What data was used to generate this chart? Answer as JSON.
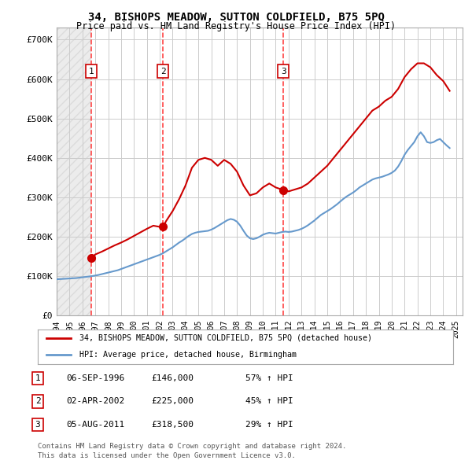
{
  "title": "34, BISHOPS MEADOW, SUTTON COLDFIELD, B75 5PQ",
  "subtitle": "Price paid vs. HM Land Registry's House Price Index (HPI)",
  "xlim": [
    1994,
    2025.5
  ],
  "ylim": [
    0,
    730000
  ],
  "yticks": [
    0,
    100000,
    200000,
    300000,
    400000,
    500000,
    600000,
    700000
  ],
  "ytick_labels": [
    "£0",
    "£100K",
    "£200K",
    "£300K",
    "£400K",
    "£500K",
    "£600K",
    "£700K"
  ],
  "xticks": [
    1994,
    1995,
    1996,
    1997,
    1998,
    1999,
    2000,
    2001,
    2002,
    2003,
    2004,
    2005,
    2006,
    2007,
    2008,
    2009,
    2010,
    2011,
    2012,
    2013,
    2014,
    2015,
    2016,
    2017,
    2018,
    2019,
    2020,
    2021,
    2022,
    2023,
    2024,
    2025
  ],
  "sale_dates": [
    1996.68,
    2002.25,
    2011.59
  ],
  "sale_prices": [
    146000,
    225000,
    318500
  ],
  "hpi_line_color": "#6699cc",
  "price_line_color": "#cc0000",
  "dashed_line_color": "#ff4444",
  "legend_box_color": "#dddddd",
  "bg_color": "#ffffff",
  "grid_color": "#cccccc",
  "hatch_color": "#dddddd",
  "legend1": "34, BISHOPS MEADOW, SUTTON COLDFIELD, B75 5PQ (detached house)",
  "legend2": "HPI: Average price, detached house, Birmingham",
  "table_entries": [
    {
      "num": "1",
      "date": "06-SEP-1996",
      "price": "£146,000",
      "change": "57% ↑ HPI"
    },
    {
      "num": "2",
      "date": "02-APR-2002",
      "price": "£225,000",
      "change": "45% ↑ HPI"
    },
    {
      "num": "3",
      "date": "05-AUG-2011",
      "price": "£318,500",
      "change": "29% ↑ HPI"
    }
  ],
  "footnote1": "Contains HM Land Registry data © Crown copyright and database right 2024.",
  "footnote2": "This data is licensed under the Open Government Licence v3.0.",
  "hpi_data_x": [
    1994.0,
    1994.25,
    1994.5,
    1994.75,
    1995.0,
    1995.25,
    1995.5,
    1995.75,
    1996.0,
    1996.25,
    1996.5,
    1996.75,
    1997.0,
    1997.25,
    1997.5,
    1997.75,
    1998.0,
    1998.25,
    1998.5,
    1998.75,
    1999.0,
    1999.25,
    1999.5,
    1999.75,
    2000.0,
    2000.25,
    2000.5,
    2000.75,
    2001.0,
    2001.25,
    2001.5,
    2001.75,
    2002.0,
    2002.25,
    2002.5,
    2002.75,
    2003.0,
    2003.25,
    2003.5,
    2003.75,
    2004.0,
    2004.25,
    2004.5,
    2004.75,
    2005.0,
    2005.25,
    2005.5,
    2005.75,
    2006.0,
    2006.25,
    2006.5,
    2006.75,
    2007.0,
    2007.25,
    2007.5,
    2007.75,
    2008.0,
    2008.25,
    2008.5,
    2008.75,
    2009.0,
    2009.25,
    2009.5,
    2009.75,
    2010.0,
    2010.25,
    2010.5,
    2010.75,
    2011.0,
    2011.25,
    2011.5,
    2011.75,
    2012.0,
    2012.25,
    2012.5,
    2012.75,
    2013.0,
    2013.25,
    2013.5,
    2013.75,
    2014.0,
    2014.25,
    2014.5,
    2014.75,
    2015.0,
    2015.25,
    2015.5,
    2015.75,
    2016.0,
    2016.25,
    2016.5,
    2016.75,
    2017.0,
    2017.25,
    2017.5,
    2017.75,
    2018.0,
    2018.25,
    2018.5,
    2018.75,
    2019.0,
    2019.25,
    2019.5,
    2019.75,
    2020.0,
    2020.25,
    2020.5,
    2020.75,
    2021.0,
    2021.25,
    2021.5,
    2021.75,
    2022.0,
    2022.25,
    2022.5,
    2022.75,
    2023.0,
    2023.25,
    2023.5,
    2023.75,
    2024.0,
    2024.25,
    2024.5
  ],
  "hpi_data_y": [
    92000,
    92500,
    93000,
    93500,
    94000,
    94500,
    95000,
    96000,
    97000,
    98000,
    99000,
    100000,
    101500,
    103000,
    105000,
    107000,
    109000,
    111000,
    113000,
    115000,
    118000,
    121000,
    124000,
    127000,
    130000,
    133000,
    136000,
    139000,
    142000,
    145000,
    148000,
    151000,
    154000,
    158000,
    163000,
    168000,
    173000,
    179000,
    185000,
    190000,
    196000,
    202000,
    207000,
    210000,
    212000,
    213000,
    214000,
    215000,
    218000,
    222000,
    227000,
    232000,
    237000,
    242000,
    245000,
    243000,
    238000,
    228000,
    215000,
    203000,
    196000,
    194000,
    196000,
    200000,
    205000,
    208000,
    210000,
    209000,
    208000,
    210000,
    212000,
    213000,
    212000,
    213000,
    215000,
    217000,
    220000,
    224000,
    229000,
    235000,
    241000,
    248000,
    255000,
    260000,
    265000,
    270000,
    276000,
    282000,
    289000,
    296000,
    302000,
    307000,
    312000,
    318000,
    325000,
    330000,
    335000,
    340000,
    345000,
    348000,
    350000,
    352000,
    355000,
    358000,
    362000,
    368000,
    378000,
    392000,
    408000,
    420000,
    430000,
    440000,
    455000,
    465000,
    455000,
    440000,
    438000,
    440000,
    445000,
    448000,
    440000,
    432000,
    425000
  ],
  "price_data_x": [
    1994.0,
    1994.5,
    1995.0,
    1995.5,
    1996.0,
    1996.68,
    1997.0,
    1997.5,
    1998.0,
    1998.5,
    1999.0,
    1999.5,
    2000.0,
    2000.5,
    2001.0,
    2001.5,
    2002.0,
    2002.25,
    2002.5,
    2003.0,
    2003.5,
    2004.0,
    2004.5,
    2005.0,
    2005.5,
    2006.0,
    2006.5,
    2007.0,
    2007.5,
    2008.0,
    2008.5,
    2009.0,
    2009.5,
    2010.0,
    2010.5,
    2011.0,
    2011.59,
    2011.75,
    2012.0,
    2012.5,
    2013.0,
    2013.5,
    2014.0,
    2014.5,
    2015.0,
    2015.5,
    2016.0,
    2016.5,
    2017.0,
    2017.5,
    2018.0,
    2018.5,
    2019.0,
    2019.5,
    2020.0,
    2020.5,
    2021.0,
    2021.5,
    2022.0,
    2022.5,
    2023.0,
    2023.5,
    2024.0,
    2024.5
  ],
  "price_data_y": [
    null,
    null,
    null,
    null,
    null,
    146000,
    155000,
    162000,
    170000,
    178000,
    185000,
    193000,
    202000,
    211000,
    220000,
    228000,
    225000,
    225000,
    240000,
    265000,
    295000,
    330000,
    375000,
    395000,
    400000,
    395000,
    380000,
    395000,
    385000,
    365000,
    330000,
    305000,
    310000,
    325000,
    335000,
    325000,
    318500,
    318500,
    315000,
    320000,
    325000,
    335000,
    350000,
    365000,
    380000,
    400000,
    420000,
    440000,
    460000,
    480000,
    500000,
    520000,
    530000,
    545000,
    555000,
    575000,
    605000,
    625000,
    640000,
    640000,
    630000,
    610000,
    595000,
    570000
  ]
}
